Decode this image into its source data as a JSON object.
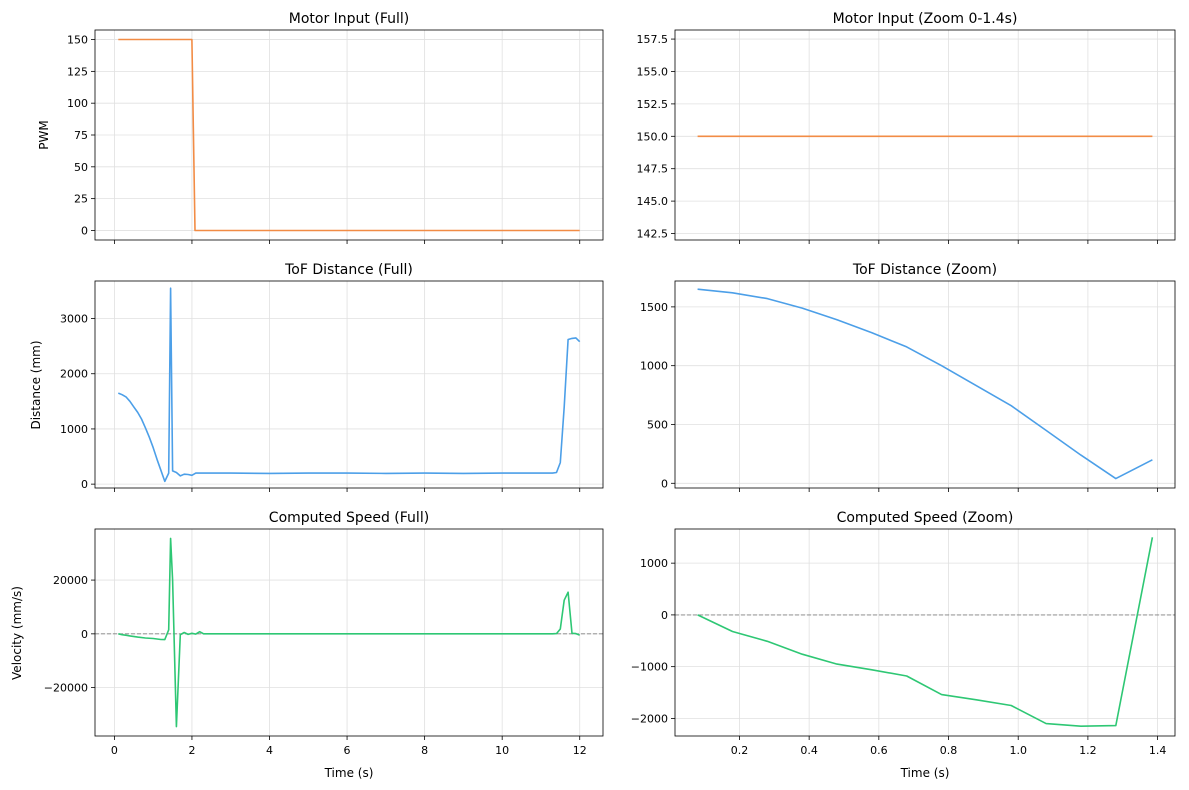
{
  "chart_data": [
    {
      "type": "line",
      "title": "Motor Input (Full)",
      "xlabel": "",
      "ylabel": "PWM",
      "xlim": [
        -0.5,
        12.6
      ],
      "ylim": [
        -7.5,
        157.5
      ],
      "xticks": [
        0,
        2,
        4,
        6,
        8,
        10,
        12
      ],
      "xtick_labels": [
        "",
        "",
        "",
        "",
        "",
        "",
        ""
      ],
      "yticks": [
        0,
        25,
        50,
        75,
        100,
        125,
        150
      ],
      "ytick_labels": [
        "0",
        "25",
        "50",
        "75",
        "100",
        "125",
        "150"
      ],
      "grid": true,
      "zero_line": false,
      "color": "#f28c45",
      "series": [
        {
          "name": "PWM",
          "x": [
            0.1,
            2.0,
            2.08,
            12.0
          ],
          "y": [
            150,
            150,
            0,
            0
          ]
        }
      ]
    },
    {
      "type": "line",
      "title": "Motor Input (Zoom 0-1.4s)",
      "xlabel": "",
      "ylabel": "",
      "xlim": [
        0.015,
        1.45
      ],
      "ylim": [
        142,
        158.2
      ],
      "xticks": [
        0.2,
        0.4,
        0.6,
        0.8,
        1.0,
        1.2,
        1.4
      ],
      "xtick_labels": [
        "",
        "",
        "",
        "",
        "",
        "",
        ""
      ],
      "yticks": [
        142.5,
        145.0,
        147.5,
        150.0,
        152.5,
        155.0,
        157.5
      ],
      "ytick_labels": [
        "142.5",
        "145.0",
        "147.5",
        "150.0",
        "152.5",
        "155.0",
        "157.5"
      ],
      "grid": true,
      "zero_line": false,
      "color": "#f28c45",
      "series": [
        {
          "name": "PWM",
          "x": [
            0.08,
            1.385
          ],
          "y": [
            150,
            150
          ]
        }
      ]
    },
    {
      "type": "line",
      "title": "ToF Distance (Full)",
      "xlabel": "",
      "ylabel": "Distance (mm)",
      "xlim": [
        -0.5,
        12.6
      ],
      "ylim": [
        -70,
        3680
      ],
      "xticks": [
        0,
        2,
        4,
        6,
        8,
        10,
        12
      ],
      "xtick_labels": [
        "",
        "",
        "",
        "",
        "",
        "",
        ""
      ],
      "yticks": [
        0,
        1000,
        2000,
        3000
      ],
      "ytick_labels": [
        "0",
        "1000",
        "2000",
        "3000"
      ],
      "grid": true,
      "zero_line": false,
      "color": "#4c9fe8",
      "series": [
        {
          "name": "Distance",
          "x": [
            0.1,
            0.2,
            0.3,
            0.4,
            0.5,
            0.6,
            0.7,
            0.8,
            0.9,
            1.0,
            1.1,
            1.2,
            1.3,
            1.4,
            1.45,
            1.5,
            1.6,
            1.7,
            1.8,
            1.9,
            2.0,
            2.1,
            2.2,
            3,
            4,
            5,
            6,
            7,
            8,
            9,
            10,
            11,
            11.3,
            11.4,
            11.5,
            11.6,
            11.7,
            11.8,
            11.9,
            12.0
          ],
          "y": [
            1650,
            1620,
            1580,
            1500,
            1400,
            1300,
            1180,
            1020,
            850,
            660,
            450,
            250,
            50,
            200,
            3550,
            240,
            210,
            150,
            180,
            175,
            160,
            200,
            200,
            200,
            195,
            200,
            200,
            195,
            200,
            195,
            200,
            200,
            200,
            210,
            390,
            1400,
            2620,
            2640,
            2650,
            2580
          ]
        }
      ]
    },
    {
      "type": "line",
      "title": "ToF Distance (Zoom)",
      "xlabel": "",
      "ylabel": "",
      "xlim": [
        0.015,
        1.45
      ],
      "ylim": [
        -40,
        1720
      ],
      "xticks": [
        0.2,
        0.4,
        0.6,
        0.8,
        1.0,
        1.2,
        1.4
      ],
      "xtick_labels": [
        "",
        "",
        "",
        "",
        "",
        "",
        ""
      ],
      "yticks": [
        0,
        500,
        1000,
        1500
      ],
      "ytick_labels": [
        "0",
        "500",
        "1000",
        "1500"
      ],
      "grid": true,
      "zero_line": false,
      "color": "#4c9fe8",
      "series": [
        {
          "name": "Distance",
          "x": [
            0.08,
            0.18,
            0.28,
            0.38,
            0.48,
            0.58,
            0.68,
            0.78,
            0.88,
            0.98,
            1.08,
            1.18,
            1.28,
            1.385
          ],
          "y": [
            1650,
            1620,
            1570,
            1490,
            1390,
            1280,
            1160,
            1000,
            830,
            660,
            450,
            240,
            40,
            200
          ]
        }
      ]
    },
    {
      "type": "line",
      "title": "Computed Speed (Full)",
      "xlabel": "Time (s)",
      "ylabel": "Velocity (mm/s)",
      "xlim": [
        -0.5,
        12.6
      ],
      "ylim": [
        -38000,
        39000
      ],
      "xticks": [
        0,
        2,
        4,
        6,
        8,
        10,
        12
      ],
      "xtick_labels": [
        "0",
        "2",
        "4",
        "6",
        "8",
        "10",
        "12"
      ],
      "yticks": [
        -20000,
        0,
        20000
      ],
      "ytick_labels": [
        "−20000",
        "0",
        "20000"
      ],
      "grid": true,
      "zero_line": true,
      "color": "#2ec774",
      "series": [
        {
          "name": "Velocity",
          "x": [
            0.1,
            0.2,
            0.4,
            0.6,
            0.8,
            1.0,
            1.2,
            1.3,
            1.4,
            1.45,
            1.5,
            1.6,
            1.7,
            1.8,
            1.9,
            2.0,
            2.1,
            2.2,
            2.3,
            3,
            4,
            5,
            6,
            7,
            8,
            9,
            10,
            11,
            11.3,
            11.4,
            11.5,
            11.6,
            11.7,
            11.8,
            11.9,
            12.0
          ],
          "y": [
            0,
            -300,
            -750,
            -1200,
            -1550,
            -1750,
            -2100,
            -2150,
            1500,
            35500,
            20000,
            -34500,
            -300,
            500,
            -200,
            200,
            -100,
            800,
            0,
            0,
            0,
            0,
            0,
            0,
            0,
            0,
            0,
            0,
            0,
            100,
            1800,
            12500,
            15500,
            200,
            100,
            -500
          ]
        }
      ]
    },
    {
      "type": "line",
      "title": "Computed Speed (Zoom)",
      "xlabel": "Time (s)",
      "ylabel": "",
      "xlim": [
        0.015,
        1.45
      ],
      "ylim": [
        -2340,
        1660
      ],
      "xticks": [
        0.2,
        0.4,
        0.6,
        0.8,
        1.0,
        1.2,
        1.4
      ],
      "xtick_labels": [
        "0.2",
        "0.4",
        "0.6",
        "0.8",
        "1.0",
        "1.2",
        "1.4"
      ],
      "yticks": [
        -2000,
        -1000,
        0,
        1000
      ],
      "ytick_labels": [
        "−2000",
        "−1000",
        "0",
        "1000"
      ],
      "grid": true,
      "zero_line": true,
      "color": "#2ec774",
      "series": [
        {
          "name": "Velocity",
          "x": [
            0.08,
            0.18,
            0.28,
            0.38,
            0.48,
            0.58,
            0.68,
            0.78,
            0.88,
            0.98,
            1.08,
            1.18,
            1.28,
            1.385
          ],
          "y": [
            0,
            -320,
            -510,
            -760,
            -950,
            -1060,
            -1180,
            -1540,
            -1640,
            -1750,
            -2100,
            -2150,
            -2140,
            1500
          ]
        }
      ]
    }
  ]
}
